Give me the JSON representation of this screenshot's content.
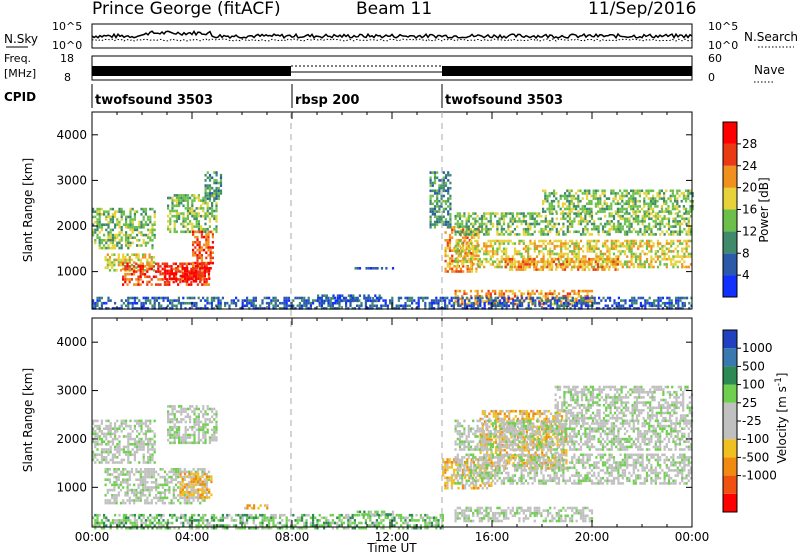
{
  "header": {
    "station": "Prince George (fitACF)",
    "beam": "Beam 11",
    "date": "11/Sep/2016"
  },
  "strips": {
    "nsky_label": "N.Sky",
    "nsearch_label": "N.Search",
    "nsky_ticks": [
      "10^5",
      "10^0"
    ],
    "nsearch_ticks": [
      "10^5",
      "10^0"
    ],
    "freq_label_1": "Freq.",
    "freq_label_2": "[MHz]",
    "freq_ticks": [
      "18",
      "8"
    ],
    "nave_label": "Nave",
    "nave_ticks": [
      "60",
      "0"
    ],
    "cpid_label": "CPID",
    "cpid_segments": [
      {
        "label": "twofsound 3503",
        "start_h": 0,
        "end_h": 8
      },
      {
        "label": "rbsp 200",
        "start_h": 8,
        "end_h": 14
      },
      {
        "label": "twofsound 3503",
        "start_h": 14,
        "end_h": 24
      }
    ]
  },
  "chart_data": [
    {
      "type": "heatmap",
      "panel": "power",
      "ylabel": "Slant Range [km]",
      "xlim_hours": [
        0,
        24
      ],
      "ylim": [
        180,
        4500
      ],
      "yticks": [
        "1000",
        "2000",
        "3000",
        "4000"
      ],
      "colorbar_label": "Power [dB]",
      "colorbar_ticks": [
        "4",
        "8",
        "12",
        "16",
        "20",
        "24",
        "28"
      ],
      "colorbar_colors": [
        "#1230ff",
        "#2a5aa8",
        "#3e8a6a",
        "#6cc04a",
        "#e8d23a",
        "#f0901e",
        "#ea3a14",
        "#ff0000"
      ],
      "echo_regions": [
        {
          "t0": 0.0,
          "t1": 2.5,
          "r0": 1500,
          "r1": 2400,
          "level": 3
        },
        {
          "t0": 0.5,
          "t1": 2.5,
          "r0": 1050,
          "r1": 1400,
          "level": 4
        },
        {
          "t0": 1.2,
          "t1": 4.7,
          "r0": 700,
          "r1": 1200,
          "level": 6
        },
        {
          "t0": 2.8,
          "t1": 4.7,
          "r0": 800,
          "r1": 1100,
          "level": 7
        },
        {
          "t0": 3.0,
          "t1": 5.0,
          "r0": 1900,
          "r1": 2700,
          "level": 3
        },
        {
          "t0": 4.0,
          "t1": 4.8,
          "r0": 1100,
          "r1": 1900,
          "level": 6
        },
        {
          "t0": 4.5,
          "t1": 5.2,
          "r0": 2600,
          "r1": 3200,
          "level": 2
        },
        {
          "t0": 14.1,
          "t1": 15.5,
          "r0": 1000,
          "r1": 2000,
          "level": 5
        },
        {
          "t0": 13.5,
          "t1": 14.3,
          "r0": 2000,
          "r1": 3200,
          "level": 2
        },
        {
          "t0": 14.5,
          "t1": 24.0,
          "r0": 1800,
          "r1": 2300,
          "level": 3
        },
        {
          "t0": 14.5,
          "t1": 24.0,
          "r0": 1100,
          "r1": 1700,
          "level": 4
        },
        {
          "t0": 18.0,
          "t1": 24.0,
          "r0": 2300,
          "r1": 2800,
          "level": 3
        },
        {
          "t0": 16.5,
          "t1": 21.0,
          "r0": 1050,
          "r1": 1300,
          "level": 5
        },
        {
          "t0": 14.5,
          "t1": 20.0,
          "r0": 300,
          "r1": 600,
          "level": 5
        },
        {
          "t0": 9.0,
          "t1": 11.5,
          "r0": 350,
          "r1": 500,
          "level": 1
        },
        {
          "t0": 10.5,
          "t1": 12.0,
          "r0": 1050,
          "r1": 1100,
          "level": 1
        },
        {
          "t0": 0.0,
          "t1": 24.0,
          "r0": 180,
          "r1": 450,
          "level": 1
        }
      ]
    },
    {
      "type": "heatmap",
      "panel": "velocity",
      "ylabel": "Slant Range [km]",
      "xlabel": "Time UT",
      "xticks": [
        "00:00",
        "04:00",
        "08:00",
        "12:00",
        "16:00",
        "20:00",
        "00:00"
      ],
      "xlim_hours": [
        0,
        24
      ],
      "ylim": [
        180,
        4500
      ],
      "yticks": [
        "1000",
        "2000",
        "3000",
        "4000"
      ],
      "colorbar_label": "Velocity [m s^-1]",
      "colorbar_ticks": [
        "1000",
        "500",
        "100",
        "25",
        "-25",
        "-100",
        "-500",
        "-1000"
      ],
      "colorbar_colors": [
        "#2040c0",
        "#3a78b0",
        "#2e8a54",
        "#6fd050",
        "#c0c0c0",
        "#c0c0c0",
        "#f0c020",
        "#f08a10",
        "#f05010",
        "#ff0000"
      ],
      "echo_regions": [
        {
          "t0": 0.0,
          "t1": 2.5,
          "r0": 1500,
          "r1": 2400,
          "level": 4
        },
        {
          "t0": 0.5,
          "t1": 4.7,
          "r0": 700,
          "r1": 1400,
          "level": 4
        },
        {
          "t0": 3.5,
          "t1": 4.8,
          "r0": 800,
          "r1": 1300,
          "level": 6
        },
        {
          "t0": 3.0,
          "t1": 5.0,
          "r0": 1900,
          "r1": 2700,
          "level": 4
        },
        {
          "t0": 14.0,
          "t1": 16.0,
          "r0": 1000,
          "r1": 1600,
          "level": 6
        },
        {
          "t0": 15.5,
          "t1": 19.0,
          "r0": 1400,
          "r1": 2600,
          "level": 6
        },
        {
          "t0": 14.5,
          "t1": 24.0,
          "r0": 1800,
          "r1": 2400,
          "level": 4
        },
        {
          "t0": 14.5,
          "t1": 24.0,
          "r0": 1100,
          "r1": 1700,
          "level": 4
        },
        {
          "t0": 18.5,
          "t1": 24.0,
          "r0": 2400,
          "r1": 3100,
          "level": 4
        },
        {
          "t0": 14.5,
          "t1": 20.0,
          "r0": 300,
          "r1": 600,
          "level": 4
        },
        {
          "t0": 0.0,
          "t1": 14.0,
          "r0": 180,
          "r1": 450,
          "level": 3
        },
        {
          "t0": 6.0,
          "t1": 7.0,
          "r0": 550,
          "r1": 650,
          "level": 6
        },
        {
          "t0": 10.5,
          "t1": 12.0,
          "r0": 450,
          "r1": 520,
          "level": 3
        }
      ]
    }
  ]
}
